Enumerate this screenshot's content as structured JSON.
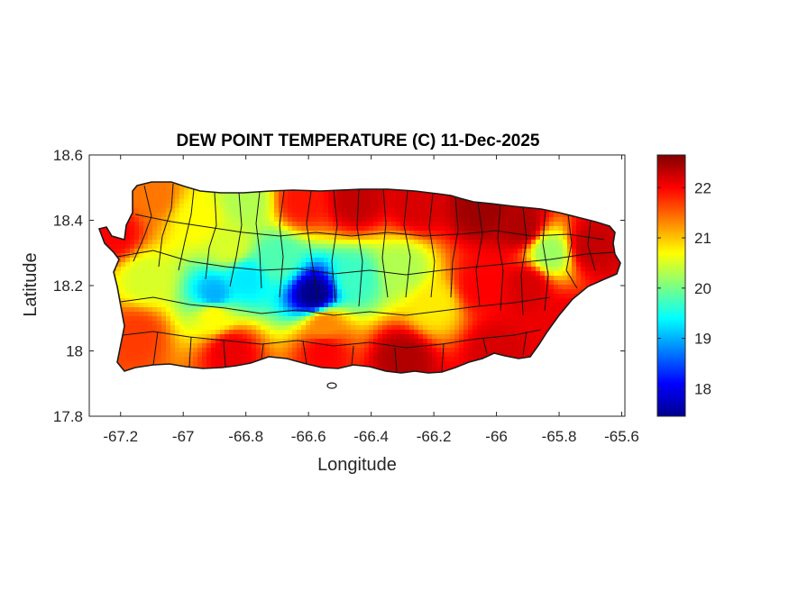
{
  "chart_data": {
    "type": "heatmap",
    "title": "DEW POINT TEMPERATURE (C) 11-Dec-2025",
    "xlabel": "Longitude",
    "ylabel": "Latitude",
    "xlim": [
      -67.3,
      -65.59
    ],
    "ylim": [
      17.8,
      18.6
    ],
    "x_ticks": [
      -67.2,
      -67,
      -66.8,
      -66.6,
      -66.4,
      -66.2,
      -66,
      -65.8,
      -65.6
    ],
    "x_tick_labels": [
      "-67.2",
      "-67",
      "-66.8",
      "-66.6",
      "-66.4",
      "-66.2",
      "-66",
      "-65.8",
      "-65.6"
    ],
    "y_ticks": [
      17.8,
      18,
      18.2,
      18.4,
      18.6
    ],
    "y_tick_labels": [
      "17.8",
      "18",
      "18.2",
      "18.4",
      "18.6"
    ],
    "colormap": "jet",
    "color_range": [
      17.45,
      22.65
    ],
    "colorbar_ticks": [
      18,
      19,
      20,
      21,
      22
    ],
    "colorbar_tick_labels": [
      "18",
      "19",
      "20",
      "21",
      "22"
    ],
    "colorbar_placement": "right",
    "grid": false,
    "field_samples": [
      {
        "lon": -67.22,
        "lat": 18.36,
        "value": 22.0
      },
      {
        "lon": -67.1,
        "lat": 18.48,
        "value": 21.4
      },
      {
        "lon": -66.95,
        "lat": 18.4,
        "value": 20.7
      },
      {
        "lon": -66.8,
        "lat": 18.46,
        "value": 20.3
      },
      {
        "lon": -66.62,
        "lat": 18.46,
        "value": 21.9
      },
      {
        "lon": -66.45,
        "lat": 18.46,
        "value": 22.3
      },
      {
        "lon": -66.25,
        "lat": 18.45,
        "value": 22.2
      },
      {
        "lon": -66.05,
        "lat": 18.44,
        "value": 22.5
      },
      {
        "lon": -65.92,
        "lat": 18.38,
        "value": 22.4
      },
      {
        "lon": -65.83,
        "lat": 18.3,
        "value": 20.2
      },
      {
        "lon": -65.7,
        "lat": 18.32,
        "value": 22.3
      },
      {
        "lon": -66.85,
        "lat": 18.32,
        "value": 20.5
      },
      {
        "lon": -66.7,
        "lat": 18.28,
        "value": 19.8
      },
      {
        "lon": -66.8,
        "lat": 18.22,
        "value": 19.3
      },
      {
        "lon": -66.58,
        "lat": 18.17,
        "value": 17.5
      },
      {
        "lon": -66.45,
        "lat": 18.22,
        "value": 19.7
      },
      {
        "lon": -66.3,
        "lat": 18.25,
        "value": 20.3
      },
      {
        "lon": -66.9,
        "lat": 18.17,
        "value": 19.0
      },
      {
        "lon": -67.12,
        "lat": 18.22,
        "value": 20.5
      },
      {
        "lon": -66.9,
        "lat": 18.11,
        "value": 20.7
      },
      {
        "lon": -66.55,
        "lat": 18.08,
        "value": 21.3
      },
      {
        "lon": -66.2,
        "lat": 18.14,
        "value": 20.8
      },
      {
        "lon": -66.05,
        "lat": 18.2,
        "value": 22.0
      },
      {
        "lon": -65.9,
        "lat": 18.2,
        "value": 22.2
      },
      {
        "lon": -65.8,
        "lat": 18.08,
        "value": 22.1
      },
      {
        "lon": -67.15,
        "lat": 18.05,
        "value": 21.7
      },
      {
        "lon": -66.85,
        "lat": 18.0,
        "value": 22.1
      },
      {
        "lon": -66.55,
        "lat": 18.0,
        "value": 22.0
      },
      {
        "lon": -66.3,
        "lat": 17.98,
        "value": 22.4
      },
      {
        "lon": -66.0,
        "lat": 18.0,
        "value": 22.2
      }
    ]
  }
}
